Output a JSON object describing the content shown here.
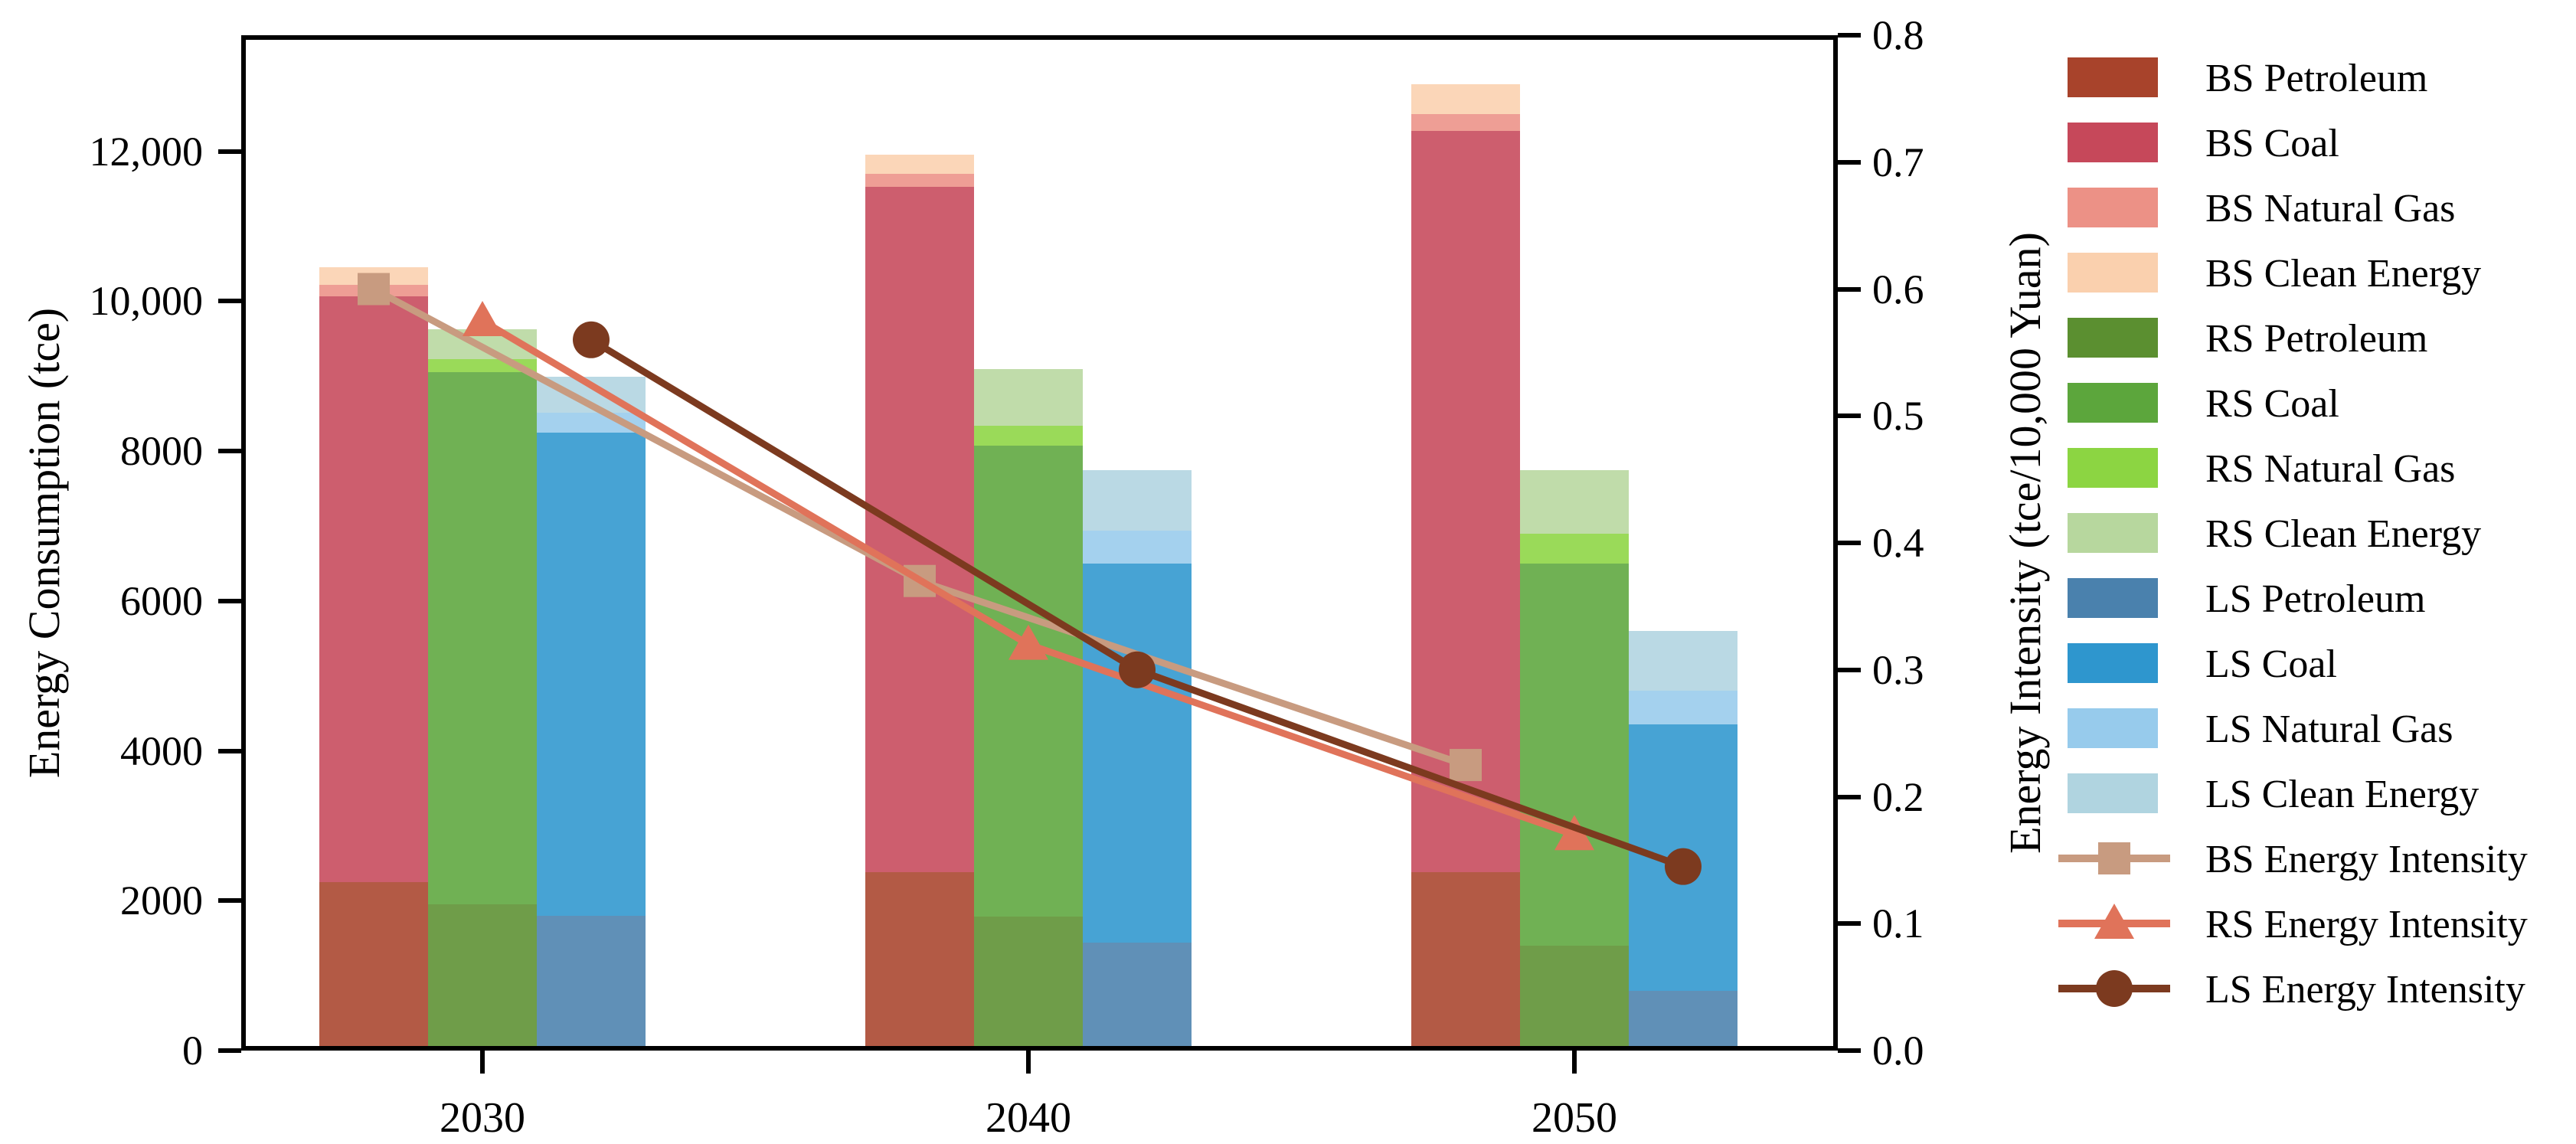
{
  "figure": {
    "left_axis_title": "Energy Consumption (tce)",
    "right_axis_title": "Energy Intensity (tce/10,000 Yuan)"
  },
  "chart_data": {
    "type": "bar",
    "subtype": "grouped stacked bars with overlaid lines on secondary axis",
    "categories": [
      "2030",
      "2040",
      "2050"
    ],
    "left_axis": {
      "label": "Energy Consumption (tce)",
      "tick_labels": [
        "0",
        "2000",
        "4000",
        "6000",
        "8000",
        "10,000",
        "12,000"
      ],
      "tick_values": [
        0,
        2000,
        4000,
        6000,
        8000,
        10000,
        12000
      ],
      "range_max_at_plot_top": 13550,
      "grid": "off"
    },
    "right_axis": {
      "label": "Energy Intensity (tce/10,000 Yuan)",
      "tick_labels": [
        "0.0",
        "0.1",
        "0.2",
        "0.3",
        "0.4",
        "0.5",
        "0.6",
        "0.7",
        "0.8"
      ],
      "tick_values": [
        0.0,
        0.1,
        0.2,
        0.3,
        0.4,
        0.5,
        0.6,
        0.7,
        0.8
      ],
      "range": [
        0.0,
        0.8
      ],
      "grid": "off"
    },
    "fuels": [
      "Petroleum",
      "Coal",
      "Natural Gas",
      "Clean Energy"
    ],
    "scenarios": [
      {
        "code": "BS",
        "bar_segments": [
          {
            "label": "BS Petroleum",
            "color": "#A8432B",
            "values": [
              2250,
              2380,
              2380
            ]
          },
          {
            "label": "BS Coal",
            "color": "#C6485A",
            "values": [
              7820,
              9150,
              9890
            ]
          },
          {
            "label": "BS Natural Gas",
            "color": "#EC9186",
            "values": [
              150,
              170,
              230
            ]
          },
          {
            "label": "BS Clean Energy",
            "color": "#FAD0AE",
            "values": [
              230,
              260,
              400
            ]
          }
        ],
        "totals": [
          10450,
          11960,
          12900
        ],
        "line": {
          "label": "BS Energy Intensity",
          "color": "#C89B80",
          "marker": "square",
          "values": [
            0.6,
            0.37,
            0.225
          ]
        }
      },
      {
        "code": "RS",
        "bar_segments": [
          {
            "label": "RS Petroleum",
            "color": "#5B8F30",
            "values": [
              1950,
              1790,
              1400
            ]
          },
          {
            "label": "RS Coal",
            "color": "#5CA63C",
            "values": [
              7100,
              6280,
              5100
            ]
          },
          {
            "label": "RS Natural Gas",
            "color": "#8CD542",
            "values": [
              180,
              270,
              400
            ]
          },
          {
            "label": "RS Clean Energy",
            "color": "#B7D79E",
            "values": [
              400,
              750,
              850
            ]
          }
        ],
        "totals": [
          9630,
          9090,
          7750
        ],
        "line": {
          "label": "RS Energy Intensity",
          "color": "#E0735A",
          "marker": "triangle",
          "values": [
            0.575,
            0.32,
            0.17
          ]
        }
      },
      {
        "code": "LS",
        "bar_segments": [
          {
            "label": "LS Petroleum",
            "color": "#4A81AD",
            "values": [
              1800,
              1440,
              800
            ]
          },
          {
            "label": "LS Coal",
            "color": "#2E96CE",
            "values": [
              6450,
              5060,
              3550
            ]
          },
          {
            "label": "LS Natural Gas",
            "color": "#97CBEC",
            "values": [
              260,
              440,
              450
            ]
          },
          {
            "label": "LS Clean Energy",
            "color": "#B0D4E0",
            "values": [
              480,
              810,
              800
            ]
          }
        ],
        "totals": [
          8990,
          7750,
          5600
        ],
        "line": {
          "label": "LS Energy Intensity",
          "color": "#7C3A1F",
          "marker": "circle",
          "values": [
            0.56,
            0.3,
            0.145
          ]
        }
      }
    ],
    "legend_position": "right, outside plot; 12 bar swatches then 3 line entries"
  }
}
